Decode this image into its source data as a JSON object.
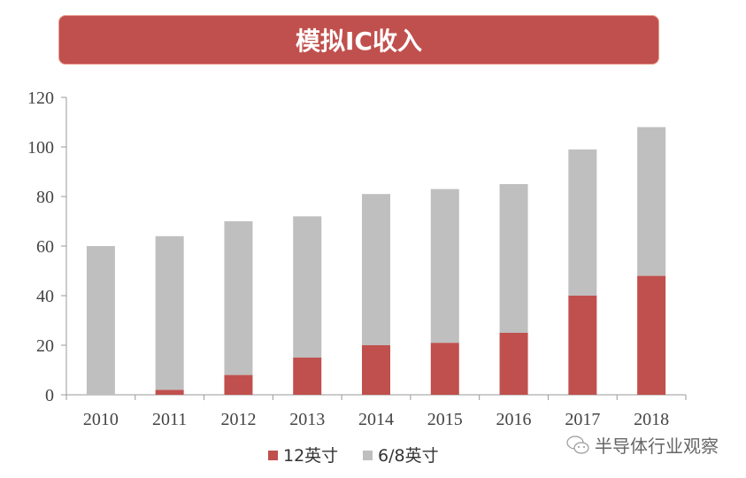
{
  "chart_data": {
    "type": "bar",
    "stacked": true,
    "title": "模拟IC收入",
    "categories": [
      "2010",
      "2011",
      "2012",
      "2013",
      "2014",
      "2015",
      "2016",
      "2017",
      "2018"
    ],
    "series": [
      {
        "name": "12英寸",
        "color": "#c0504d",
        "values": [
          0,
          2,
          8,
          15,
          20,
          21,
          25,
          40,
          48
        ]
      },
      {
        "name": "6/8英寸",
        "color": "#bfbfbf",
        "values": [
          60,
          62,
          62,
          57,
          61,
          62,
          60,
          59,
          60
        ]
      }
    ],
    "ylim": [
      0,
      120
    ],
    "yticks": [
      0,
      20,
      40,
      60,
      80,
      100,
      120
    ],
    "grid": false,
    "legend": "bottom"
  },
  "watermark": {
    "text": "半导体行业观察",
    "icon": "wechat-icon"
  }
}
